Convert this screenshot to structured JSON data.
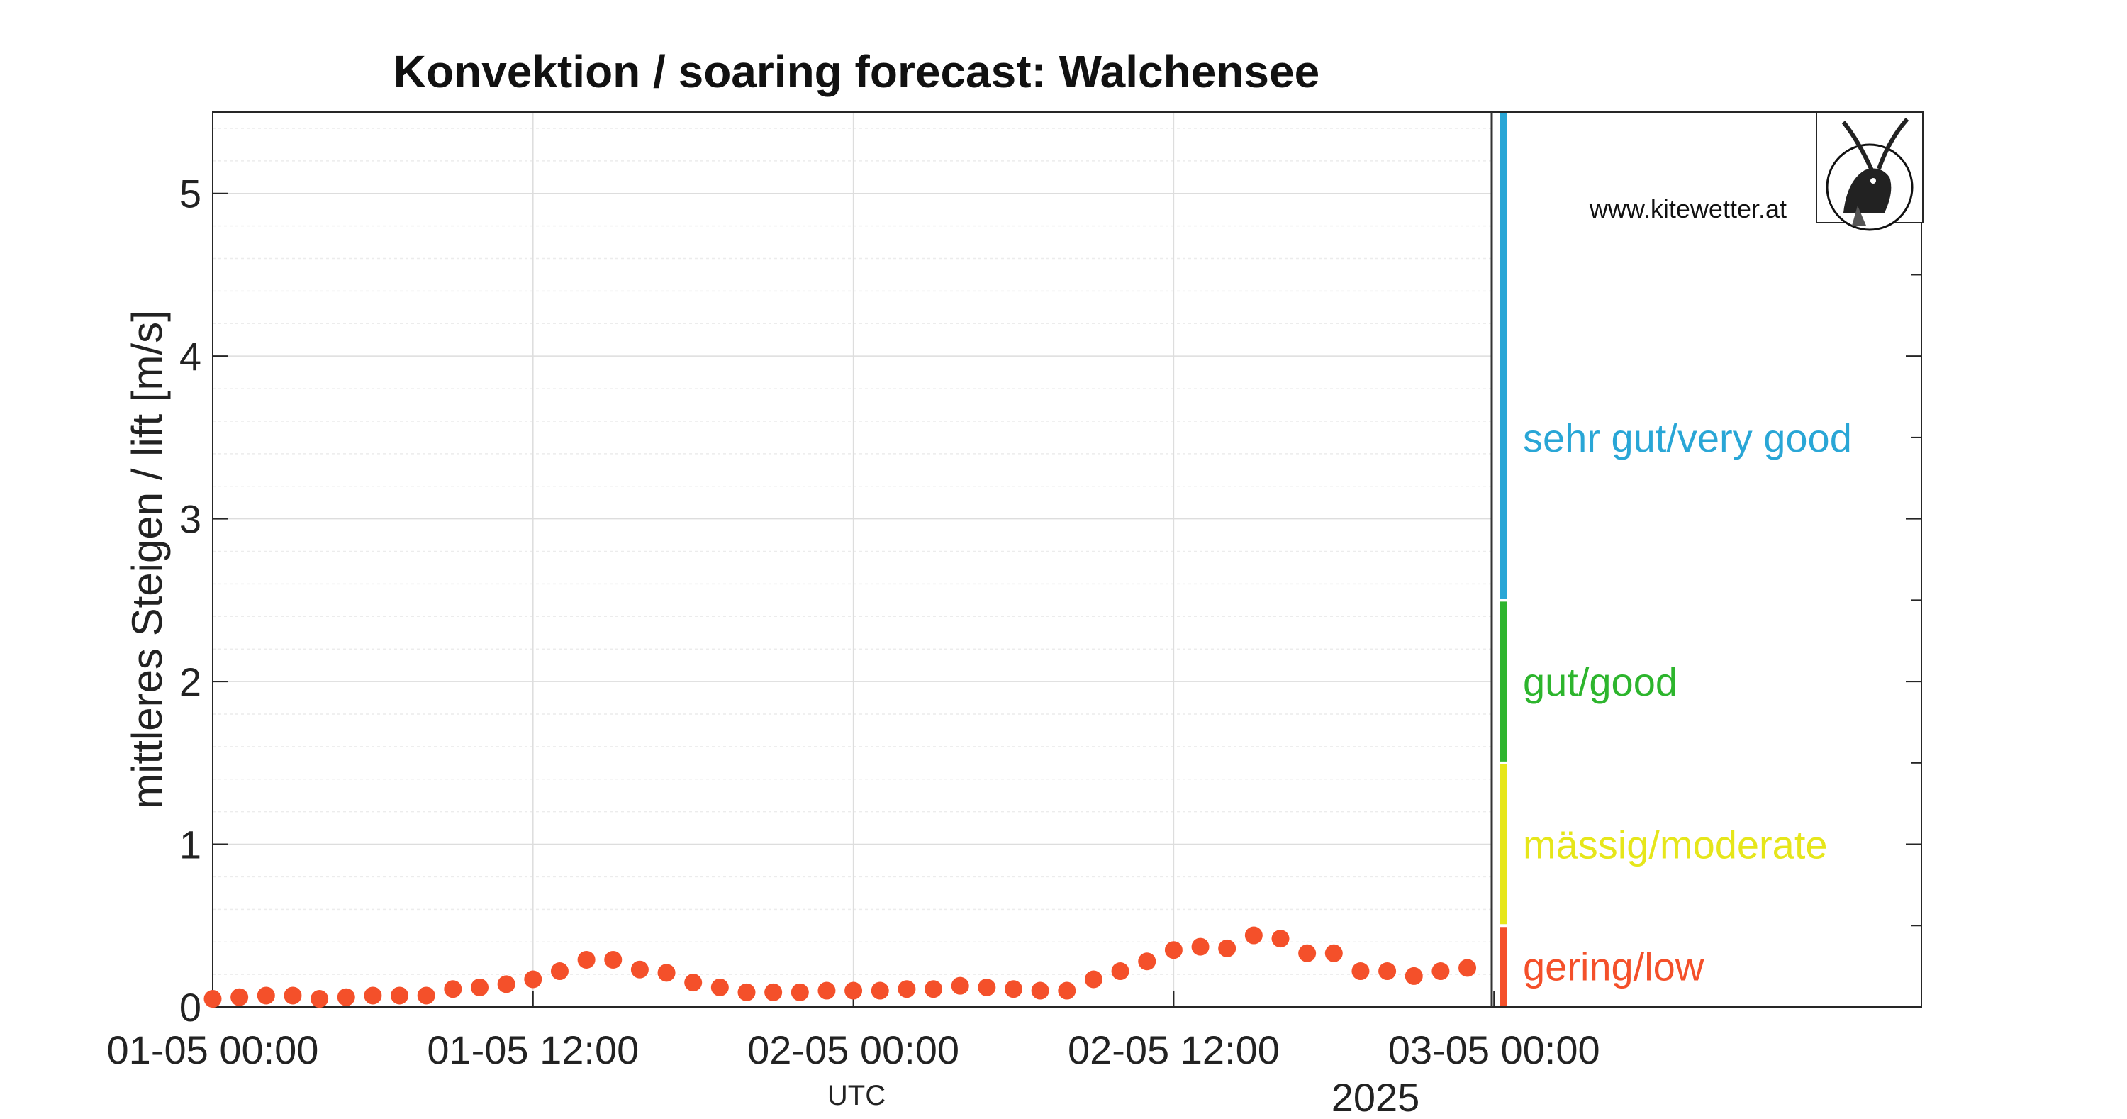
{
  "chart_data": {
    "type": "scatter",
    "title": "Konvektion / soaring forecast: Walchensee",
    "ylabel": "mittleres Steigen / lift [m/s]",
    "xlabel": "UTC",
    "x_year_label": "2025",
    "ylim": [
      0,
      5.5
    ],
    "y_ticks": [
      0,
      1,
      2,
      3,
      4,
      5
    ],
    "x_tick_labels": [
      "01-05 00:00",
      "01-05 12:00",
      "02-05 00:00",
      "02-05 12:00",
      "03-05 00:00"
    ],
    "grid": true,
    "watermark": "www.kitewetter.at",
    "point_color": "#f4502a",
    "series": [
      {
        "x": [
          "01-05 00:00",
          "01-05 01:00",
          "01-05 02:00",
          "01-05 03:00",
          "01-05 04:00",
          "01-05 05:00",
          "01-05 06:00",
          "01-05 07:00",
          "01-05 08:00",
          "01-05 09:00",
          "01-05 10:00",
          "01-05 11:00",
          "01-05 12:00",
          "01-05 13:00",
          "01-05 14:00",
          "01-05 15:00",
          "01-05 16:00",
          "01-05 17:00",
          "01-05 18:00",
          "01-05 19:00",
          "01-05 20:00",
          "01-05 21:00",
          "01-05 22:00",
          "01-05 23:00",
          "02-05 00:00",
          "02-05 01:00",
          "02-05 02:00",
          "02-05 03:00",
          "02-05 04:00",
          "02-05 05:00",
          "02-05 06:00",
          "02-05 07:00",
          "02-05 08:00",
          "02-05 09:00",
          "02-05 10:00",
          "02-05 11:00",
          "02-05 12:00",
          "02-05 13:00",
          "02-05 14:00",
          "02-05 15:00",
          "02-05 16:00",
          "02-05 17:00",
          "02-05 18:00",
          "02-05 19:00",
          "02-05 20:00",
          "02-05 21:00",
          "02-05 22:00",
          "02-05 23:00"
        ],
        "values": [
          0.05,
          0.06,
          0.07,
          0.07,
          0.05,
          0.06,
          0.07,
          0.07,
          0.07,
          0.11,
          0.12,
          0.14,
          0.17,
          0.22,
          0.29,
          0.29,
          0.23,
          0.21,
          0.15,
          0.12,
          0.09,
          0.09,
          0.09,
          0.1,
          0.1,
          0.1,
          0.11,
          0.11,
          0.13,
          0.12,
          0.11,
          0.1,
          0.1,
          0.17,
          0.22,
          0.28,
          0.35,
          0.37,
          0.36,
          0.44,
          0.42,
          0.33,
          0.33,
          0.22,
          0.22,
          0.19,
          0.22,
          0.24
        ]
      }
    ],
    "categories": [
      {
        "label": "sehr gut/very good",
        "range": [
          2.5,
          5.5
        ],
        "color": "#29a6d6"
      },
      {
        "label": "gut/good",
        "range": [
          1.5,
          2.5
        ],
        "color": "#2db52d"
      },
      {
        "label": "mässig/moderate",
        "range": [
          0.5,
          1.5
        ],
        "color": "#e6e61a"
      },
      {
        "label": "gering/low",
        "range": [
          0,
          0.5
        ],
        "color": "#f4502a"
      }
    ]
  }
}
